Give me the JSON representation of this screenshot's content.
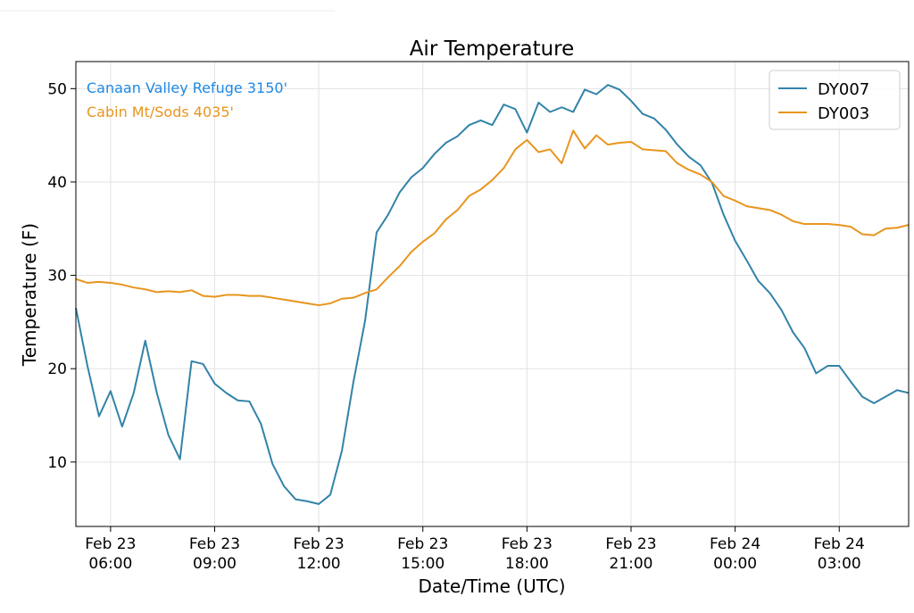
{
  "chart_data": {
    "type": "line",
    "title": "Air Temperature",
    "x_label": "Date/Time (UTC)",
    "y_label": "Temperature (F)",
    "annotations": [
      {
        "text": "Canaan Valley Refuge 3150'",
        "color": "#1e88e5"
      },
      {
        "text": "Cabin Mt/Sods 4035'",
        "color": "#e8951e"
      }
    ],
    "x": [
      "Feb 23 05:00",
      "Feb 23 05:20",
      "Feb 23 05:40",
      "Feb 23 06:00",
      "Feb 23 06:20",
      "Feb 23 06:40",
      "Feb 23 07:00",
      "Feb 23 07:20",
      "Feb 23 07:40",
      "Feb 23 08:00",
      "Feb 23 08:20",
      "Feb 23 08:40",
      "Feb 23 09:00",
      "Feb 23 09:20",
      "Feb 23 09:40",
      "Feb 23 10:00",
      "Feb 23 10:20",
      "Feb 23 10:40",
      "Feb 23 11:00",
      "Feb 23 11:20",
      "Feb 23 11:40",
      "Feb 23 12:00",
      "Feb 23 12:20",
      "Feb 23 12:40",
      "Feb 23 13:00",
      "Feb 23 13:20",
      "Feb 23 13:40",
      "Feb 23 14:00",
      "Feb 23 14:20",
      "Feb 23 14:40",
      "Feb 23 15:00",
      "Feb 23 15:20",
      "Feb 23 15:40",
      "Feb 23 16:00",
      "Feb 23 16:20",
      "Feb 23 16:40",
      "Feb 23 17:00",
      "Feb 23 17:20",
      "Feb 23 17:40",
      "Feb 23 18:00",
      "Feb 23 18:20",
      "Feb 23 18:40",
      "Feb 23 19:00",
      "Feb 23 19:20",
      "Feb 23 19:40",
      "Feb 23 20:00",
      "Feb 23 20:20",
      "Feb 23 20:40",
      "Feb 23 21:00",
      "Feb 23 21:20",
      "Feb 23 21:40",
      "Feb 23 22:00",
      "Feb 23 22:20",
      "Feb 23 22:40",
      "Feb 23 23:00",
      "Feb 23 23:20",
      "Feb 23 23:40",
      "Feb 24 00:00",
      "Feb 24 00:20",
      "Feb 24 00:40",
      "Feb 24 01:00",
      "Feb 24 01:20",
      "Feb 24 01:40",
      "Feb 24 02:00",
      "Feb 24 02:20",
      "Feb 24 02:40",
      "Feb 24 03:00",
      "Feb 24 03:20",
      "Feb 24 03:40",
      "Feb 24 04:00",
      "Feb 24 04:20",
      "Feb 24 04:40",
      "Feb 24 05:00"
    ],
    "series": [
      {
        "name": "DY007",
        "color": "#3283a8",
        "values": [
          26.5,
          20.3,
          14.9,
          17.6,
          13.8,
          17.4,
          23.0,
          17.4,
          12.9,
          10.3,
          20.8,
          20.5,
          18.4,
          17.4,
          16.6,
          16.5,
          14.1,
          9.8,
          7.4,
          6.0,
          5.8,
          5.5,
          6.5,
          11.2,
          18.6,
          25.1,
          34.6,
          36.5,
          38.9,
          40.5,
          41.5,
          43.0,
          44.2,
          44.9,
          46.1,
          46.6,
          46.1,
          48.3,
          47.8,
          45.3,
          48.5,
          47.5,
          48.0,
          47.5,
          49.9,
          49.4,
          50.4,
          49.9,
          48.7,
          47.3,
          46.8,
          45.6,
          44.0,
          42.7,
          41.8,
          39.9,
          36.5,
          33.7,
          31.6,
          29.4,
          28.1,
          26.3,
          23.9,
          22.2,
          19.5,
          20.3,
          20.3,
          18.6,
          17.0,
          16.3,
          17.0,
          17.7,
          17.4
        ]
      },
      {
        "name": "DY003",
        "color": "#e8951e",
        "values": [
          29.6,
          29.2,
          29.3,
          29.2,
          29.0,
          28.7,
          28.5,
          28.2,
          28.3,
          28.2,
          28.4,
          27.8,
          27.7,
          27.9,
          27.9,
          27.8,
          27.8,
          27.6,
          27.4,
          27.2,
          27.0,
          26.8,
          27.0,
          27.5,
          27.6,
          28.1,
          28.5,
          29.8,
          31.0,
          32.5,
          33.6,
          34.5,
          36.0,
          37.0,
          38.5,
          39.2,
          40.2,
          41.5,
          43.5,
          44.5,
          43.2,
          43.5,
          42.0,
          45.5,
          43.6,
          45.0,
          44.0,
          44.2,
          44.3,
          43.5,
          43.4,
          43.3,
          42.0,
          41.3,
          40.8,
          40.0,
          38.5,
          38.0,
          37.4,
          37.2,
          37.0,
          36.5,
          35.8,
          35.5,
          35.5,
          35.5,
          35.4,
          35.2,
          34.4,
          34.3,
          35.0,
          35.1,
          35.4
        ]
      }
    ],
    "xlim": [
      "Feb 23 05:00",
      "Feb 24 05:00"
    ],
    "xticks": [
      {
        "value": "Feb 23 06:00",
        "label": [
          "Feb 23",
          "06:00"
        ]
      },
      {
        "value": "Feb 23 09:00",
        "label": [
          "Feb 23",
          "09:00"
        ]
      },
      {
        "value": "Feb 23 12:00",
        "label": [
          "Feb 23",
          "12:00"
        ]
      },
      {
        "value": "Feb 23 15:00",
        "label": [
          "Feb 23",
          "15:00"
        ]
      },
      {
        "value": "Feb 23 18:00",
        "label": [
          "Feb 23",
          "18:00"
        ]
      },
      {
        "value": "Feb 23 21:00",
        "label": [
          "Feb 23",
          "21:00"
        ]
      },
      {
        "value": "Feb 24 00:00",
        "label": [
          "Feb 24",
          "00:00"
        ]
      },
      {
        "value": "Feb 24 03:00",
        "label": [
          "Feb 24",
          "03:00"
        ]
      }
    ],
    "ylim": [
      3.1,
      52.9
    ],
    "yticks": [
      10,
      20,
      30,
      40,
      50
    ],
    "grid": true,
    "legend": "upper right"
  }
}
